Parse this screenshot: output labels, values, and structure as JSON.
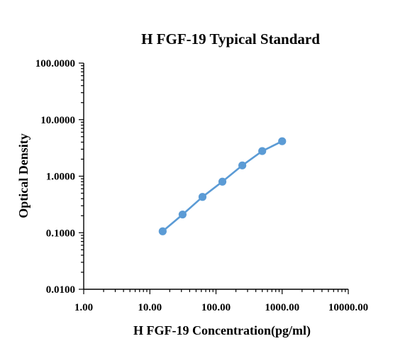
{
  "chart_data": {
    "type": "line",
    "title": "H FGF-19 Typical Standard",
    "xlabel": "H FGF-19 Concentration(pg/ml)",
    "ylabel": "Optical Density",
    "x_scale": "log",
    "y_scale": "log",
    "xlim": [
      1,
      10000
    ],
    "ylim": [
      0.01,
      100
    ],
    "x_tick_labels": [
      "1.00",
      "10.00",
      "100.00",
      "1000.00",
      "10000.00"
    ],
    "y_tick_labels": [
      "0.0100",
      "0.1000",
      "1.0000",
      "10.0000",
      "100.0000"
    ],
    "grid": false,
    "legend": "none",
    "series": [
      {
        "color": "#5b9bd5",
        "x": [
          15.625,
          31.25,
          62.5,
          125,
          250,
          500,
          1000
        ],
        "y": [
          0.106,
          0.21,
          0.43,
          0.8,
          1.55,
          2.78,
          4.15
        ]
      }
    ]
  }
}
